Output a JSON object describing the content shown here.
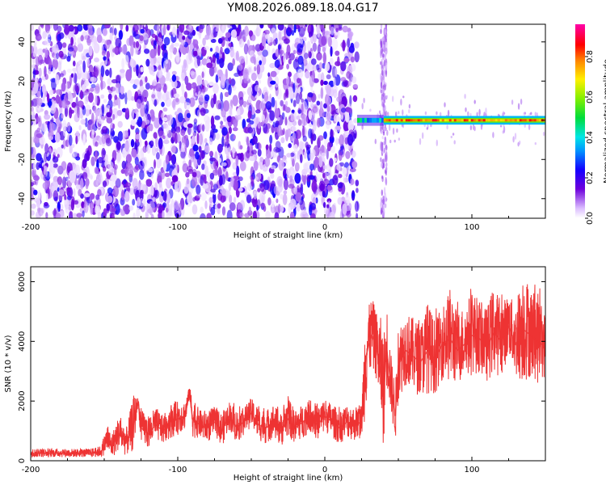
{
  "title": "YM08.2026.089.18.04.G17",
  "chart_data": [
    {
      "type": "heatmap",
      "xlabel": "Height of straight line (km)",
      "ylabel": "Frequency (Hz)",
      "xlim": [
        -200,
        150
      ],
      "ylim": [
        -50,
        49
      ],
      "xticks": [
        -200,
        -100,
        0,
        100
      ],
      "yticks": [
        -40,
        -20,
        0,
        20,
        40
      ],
      "x_tick_labels": [
        "-200",
        "-100",
        "0",
        "100"
      ],
      "y_tick_labels": [
        "-40",
        "-20",
        "0",
        "20",
        "40"
      ],
      "colorbar": {
        "label": "Normalized spectral amplitude",
        "range": [
          0,
          0.96
        ],
        "ticks": [
          0,
          0.2,
          0.4,
          0.6,
          0.8
        ],
        "tick_labels": [
          "0.0",
          "0.2",
          "0.4",
          "0.6",
          "0.8"
        ],
        "colormap": "rainbow"
      },
      "regions": [
        {
          "x": [
            -200,
            22
          ],
          "y": [
            -50,
            49
          ],
          "pattern": "scattered noise",
          "amplitude": 0.1
        },
        {
          "x": [
            22,
            40
          ],
          "y": [
            -2,
            2
          ],
          "pattern": "tone onset",
          "amplitude": 0.45
        },
        {
          "x": [
            40,
            150
          ],
          "y": [
            -1.5,
            1.5
          ],
          "pattern": "steady tone at 0 Hz",
          "amplitude": 0.85
        },
        {
          "x": [
            38,
            42
          ],
          "y": [
            -50,
            49
          ],
          "pattern": "vertical faint streak",
          "amplitude": 0.05
        }
      ],
      "grid": false
    },
    {
      "type": "line",
      "xlabel": "Height of straight line (km)",
      "ylabel": "SNR (10 * v/v)",
      "xlim": [
        -200,
        150
      ],
      "ylim": [
        0,
        6500
      ],
      "xticks": [
        -200,
        -100,
        0,
        100
      ],
      "yticks": [
        0,
        2000,
        4000,
        6000
      ],
      "x_tick_labels": [
        "-200",
        "-100",
        "0",
        "100"
      ],
      "y_tick_labels": [
        "0",
        "2000",
        "4000",
        "6000"
      ],
      "color": "#ee3333",
      "series": [
        {
          "x": [
            -200,
            -190,
            -180,
            -170,
            -160,
            -152,
            -148,
            -145,
            -140,
            -135,
            -130,
            -127,
            -125,
            -120,
            -115,
            -110,
            -105,
            -100,
            -95,
            -92,
            -90,
            -85,
            -80,
            -75,
            -70,
            -65,
            -60,
            -55,
            -50,
            -45,
            -40,
            -35,
            -30,
            -25,
            -20,
            -15,
            -10,
            -5,
            0,
            5,
            10,
            15,
            20,
            25,
            28,
            30,
            32,
            35,
            38,
            40,
            42,
            45,
            48,
            50,
            55,
            60,
            65,
            70,
            75,
            80,
            85,
            90,
            95,
            100,
            105,
            110,
            115,
            120,
            125,
            130,
            135,
            140,
            145,
            150
          ],
          "values": [
            250,
            250,
            250,
            250,
            250,
            300,
            700,
            450,
            900,
            600,
            1200,
            2000,
            1100,
            900,
            1200,
            1000,
            1300,
            1400,
            1500,
            2300,
            1400,
            1200,
            1100,
            1300,
            1000,
            1500,
            1100,
            1300,
            1600,
            1200,
            1100,
            1300,
            1000,
            1400,
            1100,
            1300,
            1500,
            1200,
            1500,
            1300,
            1100,
            1300,
            1200,
            1300,
            3500,
            3900,
            4200,
            3800,
            3000,
            2200,
            3800,
            2500,
            1500,
            3200,
            3700,
            3500,
            3300,
            3700,
            3400,
            3900,
            4100,
            3700,
            3900,
            4200,
            4100,
            3800,
            4300,
            4000,
            4500,
            3900,
            4400,
            4200,
            4000,
            3800
          ],
          "envelope": [
            400,
            400,
            400,
            400,
            400,
            500,
            1200,
            900,
            1500,
            1100,
            2200,
            2100,
            1700,
            1500,
            1800,
            1500,
            1900,
            2000,
            2000,
            2500,
            2100,
            1700,
            1700,
            1800,
            1600,
            2000,
            1700,
            1800,
            2100,
            1800,
            1700,
            1900,
            1600,
            2100,
            1700,
            1900,
            2100,
            1800,
            2100,
            1900,
            1700,
            1900,
            1800,
            1900,
            5600,
            5200,
            5500,
            5000,
            4800,
            4200,
            5300,
            3600,
            2500,
            4500,
            5000,
            4800,
            4600,
            5300,
            4700,
            5200,
            5800,
            5000,
            5200,
            5700,
            5400,
            5100,
            5900,
            5300,
            5600,
            5200,
            6400,
            5800,
            5600,
            4900
          ]
        }
      ],
      "grid": false
    }
  ]
}
